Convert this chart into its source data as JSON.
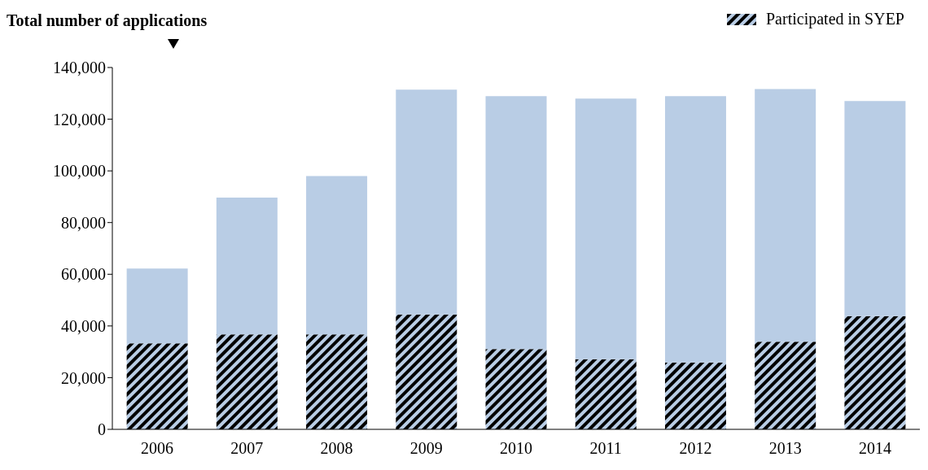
{
  "chart_data": {
    "type": "bar",
    "ylabel": "Total number of applications",
    "categories": [
      "2006",
      "2007",
      "2008",
      "2009",
      "2010",
      "2011",
      "2012",
      "2013",
      "2014"
    ],
    "stacked": true,
    "series": [
      {
        "name": "Participated in SYEP",
        "color": "#000000",
        "values": [
          33300,
          36700,
          36700,
          44400,
          31100,
          27100,
          25900,
          33900,
          43800
        ]
      },
      {
        "color": "#b9cde5",
        "values": [
          28900,
          53000,
          61300,
          87000,
          97800,
          100900,
          103000,
          97800,
          83200
        ]
      }
    ],
    "ylim": [
      0,
      140000
    ],
    "yticks": [
      {
        "value": 0,
        "label": "0"
      },
      {
        "value": 20000,
        "label": "20,000"
      },
      {
        "value": 40000,
        "label": "40,000"
      },
      {
        "value": 60000,
        "label": "60,000"
      },
      {
        "value": 80000,
        "label": "80,000"
      },
      {
        "value": 100000,
        "label": "100,000"
      },
      {
        "value": 120000,
        "label": "120,000"
      },
      {
        "value": 140000,
        "label": "140,000"
      }
    ],
    "grid": false,
    "legend": "top right"
  }
}
